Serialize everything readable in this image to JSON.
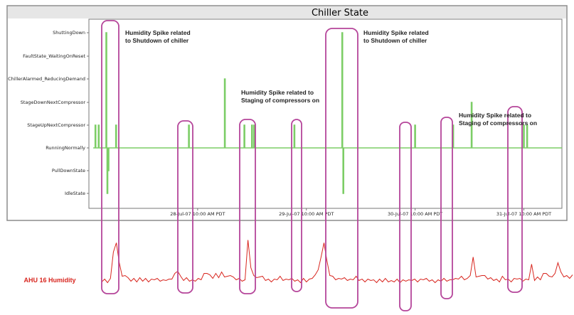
{
  "chart_data": [
    {
      "type": "line",
      "title": "Chiller State",
      "y_categories": [
        "IdleState",
        "PullDownState",
        "RunningNormally",
        "StageUpNextCompressor",
        "StageDownNextCompressor",
        "ChillerAlarmed_ReducingDemand",
        "FaultState_WaitingOnReset",
        "ShuttingDown"
      ],
      "x_tick_labels": [
        "28-Jul-07 10:00 AM PDT",
        "29-Jul-07 10:00 AM PDT",
        "30-Jul-07 10:00 AM PDT",
        "31-Jul-07 10:00 AM PDT"
      ],
      "x_unit": "days since 27-Jul-07 10:00 AM PDT",
      "xlim": [
        0,
        4.35
      ],
      "baseline_state": "RunningNormally",
      "line_color": "#7ccd66",
      "series": [
        {
          "name": "",
          "spikes": [
            {
              "x": 0.06,
              "state": "StageUpNextCompressor"
            },
            {
              "x": 0.09,
              "state": "StageUpNextCompressor"
            },
            {
              "x": 0.16,
              "state": "ShuttingDown"
            },
            {
              "x": 0.17,
              "state": "IdleState"
            },
            {
              "x": 0.18,
              "state": "PullDownState"
            },
            {
              "x": 0.25,
              "state": "StageUpNextCompressor"
            },
            {
              "x": 0.92,
              "state": "StageUpNextCompressor"
            },
            {
              "x": 1.25,
              "state": "ChillerAlarmed_ReducingDemand"
            },
            {
              "x": 1.43,
              "state": "StageUpNextCompressor"
            },
            {
              "x": 1.5,
              "state": "StageUpNextCompressor"
            },
            {
              "x": 1.52,
              "state": "StageUpNextCompressor"
            },
            {
              "x": 1.89,
              "state": "StageUpNextCompressor"
            },
            {
              "x": 2.33,
              "state": "ShuttingDown"
            },
            {
              "x": 2.34,
              "state": "IdleState"
            },
            {
              "x": 3.0,
              "state": "StageUpNextCompressor"
            },
            {
              "x": 3.35,
              "state": "StageUpNextCompressor"
            },
            {
              "x": 3.52,
              "state": "StageDownNextCompressor"
            },
            {
              "x": 4.0,
              "state": "StageUpNextCompressor"
            },
            {
              "x": 4.03,
              "state": "StageUpNextCompressor"
            }
          ]
        }
      ]
    },
    {
      "type": "line",
      "title": "",
      "series_label": "AHU 16 Humidity",
      "line_color": "#d8261f",
      "series": [
        {
          "name": "AHU 16 Humidity",
          "values": [
            3,
            4,
            2,
            5,
            45,
            55,
            30,
            8,
            12,
            6,
            4,
            5,
            3,
            6,
            4,
            5,
            3,
            4,
            6,
            5,
            4,
            3,
            5,
            4,
            7,
            12,
            18,
            8,
            5,
            6,
            4,
            3,
            4,
            5,
            6,
            12,
            15,
            10,
            8,
            12,
            9,
            14,
            10,
            8,
            12,
            7,
            6,
            5,
            4,
            3,
            62,
            20,
            12,
            6,
            10,
            8,
            5,
            4,
            3,
            4,
            6,
            8,
            5,
            4,
            6,
            5,
            4,
            3,
            2,
            5,
            3,
            4,
            8,
            10,
            20,
            35,
            58,
            30,
            12,
            8,
            6,
            5,
            7,
            6,
            5,
            4,
            6,
            8,
            5,
            4,
            3,
            4,
            5,
            3,
            2,
            4,
            3,
            5,
            3,
            2,
            3,
            4,
            2,
            3,
            4,
            3,
            5,
            4,
            3,
            4,
            6,
            5,
            4,
            3,
            2,
            3,
            4,
            5,
            4,
            3,
            6,
            5,
            7,
            8,
            6,
            5,
            12,
            35,
            10,
            8,
            12,
            9,
            7,
            6,
            5,
            4,
            3,
            8,
            6,
            4,
            3,
            5,
            7,
            5,
            4,
            4,
            6,
            25,
            5,
            7,
            6,
            12,
            15,
            8,
            10,
            12,
            30,
            14,
            10,
            9,
            8,
            10
          ]
        }
      ]
    }
  ],
  "annotations": {
    "shutdown_1": "Humidity Spike related\nto Shutdown of chiller",
    "staging_1": "Humidity Spike related to\nStaging of compressors on",
    "shutdown_2": "Humidity Spike related\nto Shutdown of chiller",
    "staging_2": "Humidity Spike related to\nStaging of compressors on"
  },
  "colors": {
    "highlight_box": "#b5459a",
    "state_line": "#7ccd66",
    "humidity_line": "#d8261f",
    "panel_border": "#8c8c8c",
    "title_bar": "#e6e6e6"
  }
}
